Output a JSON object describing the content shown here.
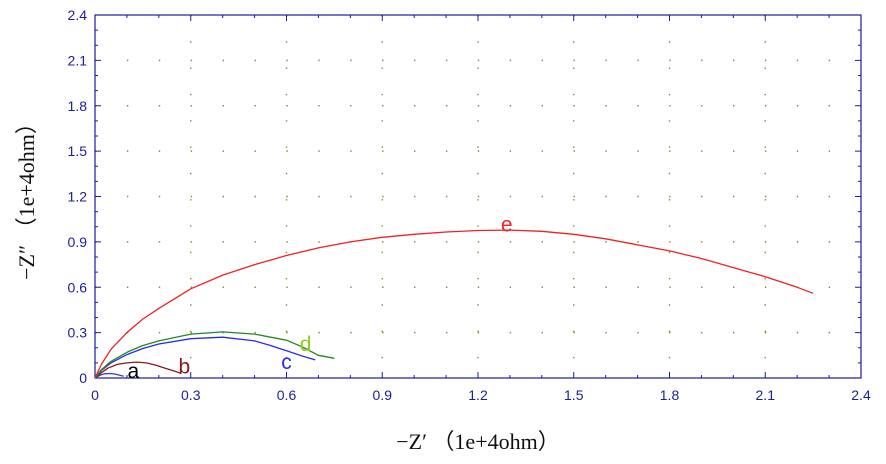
{
  "chart_data": {
    "type": "line",
    "title": "",
    "xlabel": "−Z′ （1e+4ohm）",
    "ylabel": "−Z″ （1e+4ohm）",
    "xlim": [
      0,
      2.4
    ],
    "ylim": [
      0,
      2.4
    ],
    "x_ticks": [
      0,
      0.3,
      0.6,
      0.9,
      1.2,
      1.5,
      1.8,
      2.1,
      2.4
    ],
    "y_ticks": [
      0,
      0.3,
      0.6,
      0.9,
      1.2,
      1.5,
      1.8,
      2.1,
      2.4
    ],
    "x_tick_labels": [
      "0",
      "0.3",
      "0.6",
      "0.9",
      "1.2",
      "1.5",
      "1.8",
      "2.1",
      "2.4"
    ],
    "y_tick_labels": [
      "0",
      "0.3",
      "0.6",
      "0.9",
      "1.2",
      "1.5",
      "1.8",
      "2.1",
      "2.4"
    ],
    "grid": true,
    "legend": "none",
    "colors": {
      "axis": "#1c1c9e",
      "grid": "#8a8a2a"
    },
    "series": [
      {
        "name": "a",
        "color": "#3a3acc",
        "label_at": [
          0.12,
          0.0
        ],
        "label_color": "#000000",
        "x": [
          0.0,
          0.01,
          0.02,
          0.03,
          0.045,
          0.06,
          0.075,
          0.09
        ],
        "y": [
          0.0,
          0.012,
          0.022,
          0.028,
          0.03,
          0.027,
          0.02,
          0.012
        ]
      },
      {
        "name": "b",
        "color": "#8b1a1a",
        "label_at": [
          0.28,
          0.03
        ],
        "label_color": "#8b1a1a",
        "x": [
          0.0,
          0.02,
          0.04,
          0.07,
          0.1,
          0.13,
          0.16,
          0.19,
          0.22,
          0.25,
          0.27
        ],
        "y": [
          0.0,
          0.035,
          0.065,
          0.09,
          0.1,
          0.105,
          0.1,
          0.085,
          0.065,
          0.045,
          0.03
        ]
      },
      {
        "name": "c",
        "color": "#2a2aee",
        "label_at": [
          0.6,
          0.06
        ],
        "label_color": "#2a2aee",
        "x": [
          0.0,
          0.02,
          0.05,
          0.1,
          0.15,
          0.2,
          0.3,
          0.4,
          0.5,
          0.55,
          0.6,
          0.65,
          0.69
        ],
        "y": [
          0.0,
          0.05,
          0.1,
          0.155,
          0.195,
          0.225,
          0.26,
          0.27,
          0.245,
          0.215,
          0.18,
          0.145,
          0.12
        ]
      },
      {
        "name": "d",
        "color": "#1f8a1f",
        "label_at": [
          0.66,
          0.18
        ],
        "label_color": "#8fcc1a",
        "x": [
          0.0,
          0.02,
          0.05,
          0.1,
          0.15,
          0.2,
          0.3,
          0.4,
          0.5,
          0.6,
          0.65,
          0.7,
          0.75
        ],
        "y": [
          0.0,
          0.055,
          0.11,
          0.17,
          0.215,
          0.245,
          0.29,
          0.305,
          0.29,
          0.25,
          0.205,
          0.15,
          0.13
        ]
      },
      {
        "name": "e",
        "color": "#ee2222",
        "label_at": [
          1.29,
          0.97
        ],
        "label_color": "#ee2222",
        "x": [
          0.0,
          0.02,
          0.05,
          0.1,
          0.15,
          0.2,
          0.3,
          0.4,
          0.5,
          0.6,
          0.7,
          0.8,
          0.9,
          1.0,
          1.1,
          1.2,
          1.3,
          1.4,
          1.5,
          1.6,
          1.7,
          1.8,
          1.9,
          2.0,
          2.1,
          2.2,
          2.25
        ],
        "y": [
          0.0,
          0.09,
          0.19,
          0.3,
          0.39,
          0.46,
          0.59,
          0.68,
          0.75,
          0.81,
          0.86,
          0.9,
          0.93,
          0.95,
          0.965,
          0.975,
          0.978,
          0.97,
          0.95,
          0.92,
          0.88,
          0.84,
          0.79,
          0.73,
          0.67,
          0.6,
          0.56
        ]
      }
    ]
  }
}
